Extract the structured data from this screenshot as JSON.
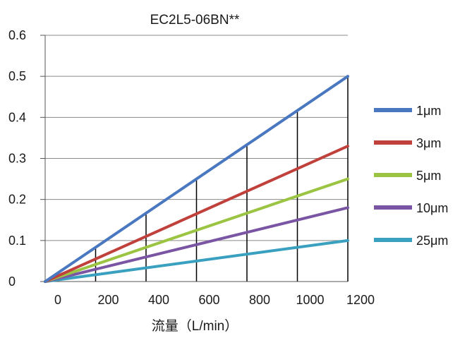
{
  "chart_data": {
    "type": "line",
    "title": "EC2L5-06BN**",
    "xlabel": "流量（L/min）",
    "ylabel": "",
    "xlim": [
      0,
      1200
    ],
    "ylim": [
      0,
      0.6
    ],
    "x_ticks": [
      "0",
      "200",
      "400",
      "600",
      "800",
      "1000",
      "1200"
    ],
    "y_ticks": [
      "0",
      "0.1",
      "0.2",
      "0.3",
      "0.4",
      "0.5",
      "0.6"
    ],
    "grid": "horizontal",
    "legend_position": "right",
    "series": [
      {
        "name": "1μm",
        "color": "#4a78c0",
        "x": [
          0,
          1200
        ],
        "y": [
          0,
          0.5
        ]
      },
      {
        "name": "3μm",
        "color": "#c0403c",
        "x": [
          0,
          1200
        ],
        "y": [
          0,
          0.33
        ]
      },
      {
        "name": "5μm",
        "color": "#9cc443",
        "x": [
          0,
          1200
        ],
        "y": [
          0,
          0.25
        ]
      },
      {
        "name": "10μm",
        "color": "#7a55a3",
        "x": [
          0,
          1200
        ],
        "y": [
          0,
          0.18
        ]
      },
      {
        "name": "25μm",
        "color": "#3aa0c0",
        "x": [
          0,
          1200
        ],
        "y": [
          0,
          0.1
        ]
      }
    ],
    "drop_lines": [
      200,
      400,
      600,
      800,
      1000,
      1200
    ]
  }
}
